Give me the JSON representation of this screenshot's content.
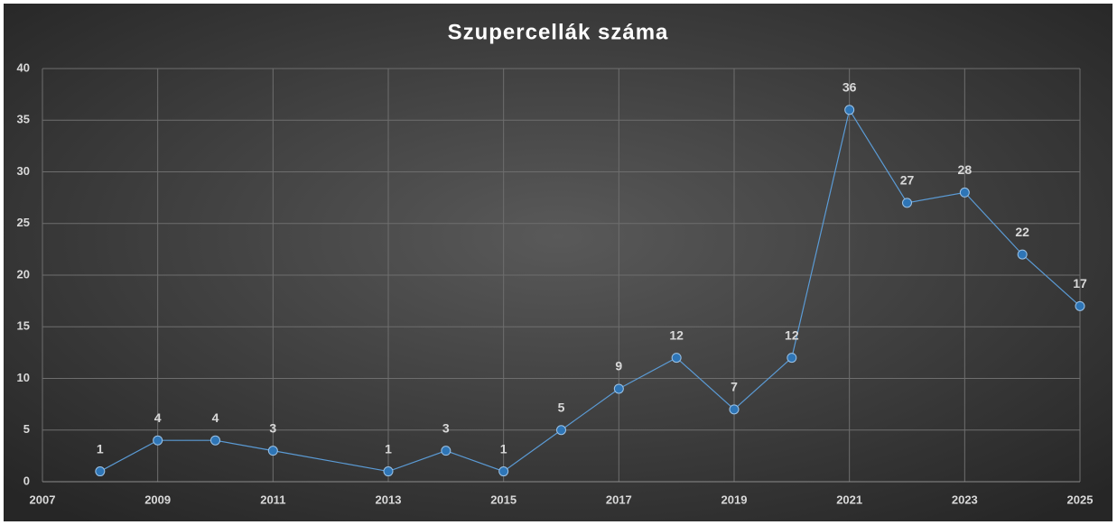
{
  "chart_data": {
    "type": "line",
    "title": "Szupercellák száma",
    "x": [
      2008,
      2009,
      2010,
      2011,
      2013,
      2014,
      2015,
      2016,
      2017,
      2018,
      2019,
      2020,
      2021,
      2022,
      2023,
      2024,
      2025
    ],
    "series": [
      {
        "name": "Szupercellák száma",
        "color": "#5b9bd5",
        "values": [
          1,
          4,
          4,
          3,
          1,
          3,
          1,
          5,
          9,
          12,
          7,
          12,
          36,
          27,
          28,
          22,
          17
        ]
      }
    ],
    "xlim": [
      2007,
      2025
    ],
    "xticks": [
      2007,
      2009,
      2011,
      2013,
      2015,
      2017,
      2019,
      2021,
      2023,
      2025
    ],
    "ylim": [
      0,
      40
    ],
    "yticks": [
      0,
      5,
      10,
      15,
      20,
      25,
      30,
      35,
      40
    ],
    "grid": true
  }
}
